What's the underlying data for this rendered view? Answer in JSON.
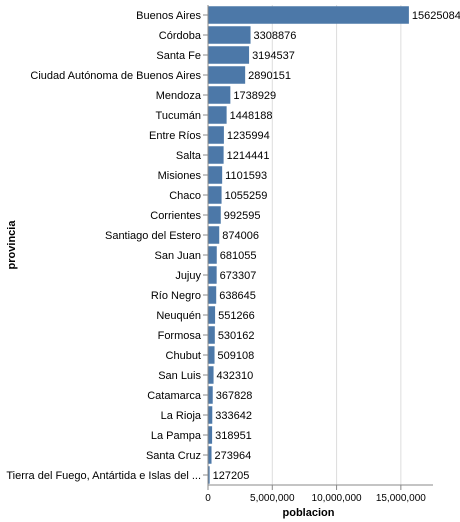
{
  "chart_data": {
    "type": "bar",
    "orientation": "horizontal",
    "title": "",
    "xlabel": "poblacion",
    "ylabel": "provincia",
    "xlim": [
      0,
      17500000
    ],
    "xticks": [
      0,
      5000000,
      10000000,
      15000000
    ],
    "xtick_labels": [
      "0",
      "5,000,000",
      "10,000,000",
      "15,000,000"
    ],
    "grid": true,
    "bar_color": "#4c78a8",
    "categories": [
      "Buenos Aires",
      "Córdoba",
      "Santa Fe",
      "Ciudad Autónoma de Buenos Aires",
      "Mendoza",
      "Tucumán",
      "Entre Ríos",
      "Salta",
      "Misiones",
      "Chaco",
      "Corrientes",
      "Santiago del Estero",
      "San Juan",
      "Jujuy",
      "Río Negro",
      "Neuquén",
      "Formosa",
      "Chubut",
      "San Luis",
      "Catamarca",
      "La Rioja",
      "La Pampa",
      "Santa Cruz",
      "Tierra del Fuego, Antártida e Islas del ..."
    ],
    "values": [
      15625084,
      3308876,
      3194537,
      2890151,
      1738929,
      1448188,
      1235994,
      1214441,
      1101593,
      1055259,
      992595,
      874006,
      681055,
      673307,
      638645,
      551266,
      530162,
      509108,
      432310,
      367828,
      333642,
      318951,
      273964,
      127205
    ]
  }
}
